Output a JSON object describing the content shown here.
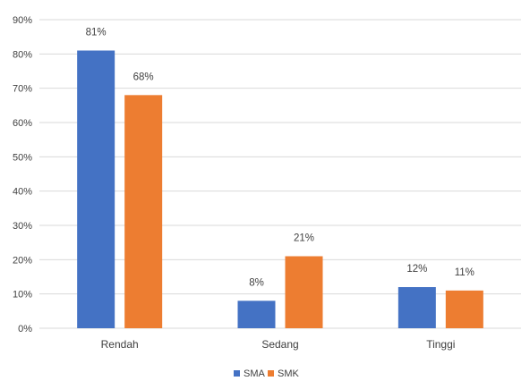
{
  "chart_data": {
    "type": "bar",
    "title": "",
    "xlabel": "",
    "ylabel": "",
    "categories": [
      "Rendah",
      "Sedang",
      "Tinggi"
    ],
    "series": [
      {
        "name": "SMA",
        "values": [
          81,
          8,
          12
        ],
        "labels": [
          "81%",
          "8%",
          "12%"
        ],
        "color": "#4472c4"
      },
      {
        "name": "SMK",
        "values": [
          68,
          21,
          11
        ],
        "labels": [
          "68%",
          "21%",
          "11%"
        ],
        "color": "#ed7d31"
      }
    ],
    "ylim": [
      0,
      90
    ],
    "yticks": [
      0,
      10,
      20,
      30,
      40,
      50,
      60,
      70,
      80,
      90
    ],
    "ytick_labels": [
      "0%",
      "10%",
      "20%",
      "30%",
      "40%",
      "50%",
      "60%",
      "70%",
      "80%",
      "90%"
    ],
    "grid": true,
    "legend": "bottom",
    "gridline_color": "#d9d9d9",
    "text_color": "#404040"
  }
}
